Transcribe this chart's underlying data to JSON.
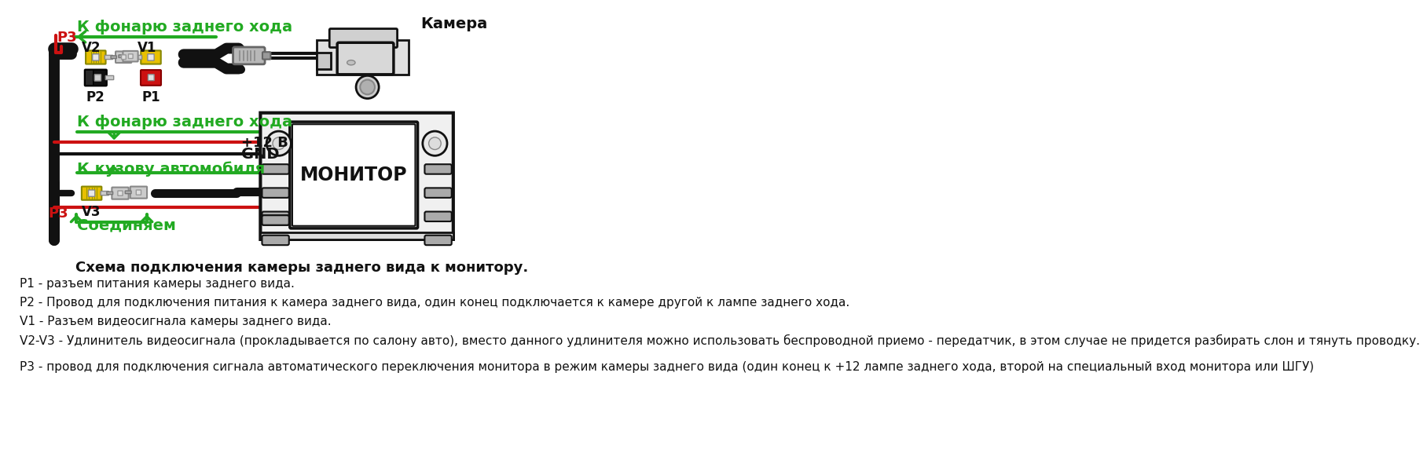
{
  "title": "Схема подключения камеры заднего вида к монитору.",
  "bg_color": "#ffffff",
  "green_color": "#22aa22",
  "red_color": "#cc1111",
  "black_color": "#111111",
  "yellow_color": "#e8c000",
  "gray_color": "#aaaaaa",
  "text_color": "#000000",
  "labels": {
    "camera": "Камера",
    "monitor": "МОНИТОР",
    "p1": "P1",
    "p2": "P2",
    "p3_top": "P3",
    "p3_bot": "P3",
    "v1": "V1",
    "v2": "V2",
    "v3": "V3",
    "plus12": "+12 В",
    "gnd": "GND",
    "k_fonary_top": "К фонарю заднего хода",
    "k_fonary_mid": "К фонарю заднего хода",
    "k_kuzovu": "К кузову автомобиля",
    "soediniaem": "Соединяем"
  },
  "legend_lines": [
    "P1 - разъем питания камеры заднего вида.",
    "P2 - Провод для подключения питания к камера заднего вида, один конец подключается к камере другой к лампе заднего хода.",
    "V1 - Разъем видеосигнала камеры заднего вида.",
    "V2-V3 - Удлинитель видеосигнала (прокладывается по салону авто), вместо данного удлинителя можно использовать беспроводной приемо - передатчик, в этом случае не придется разбирать слон и тянуть проводку.",
    "Р3 - провод для подключения сигнала автоматического переключения монитора в режим камеры заднего вида (один конец к +12 лампе заднего хода, второй на специальный вход монитора или ШГУ)"
  ]
}
